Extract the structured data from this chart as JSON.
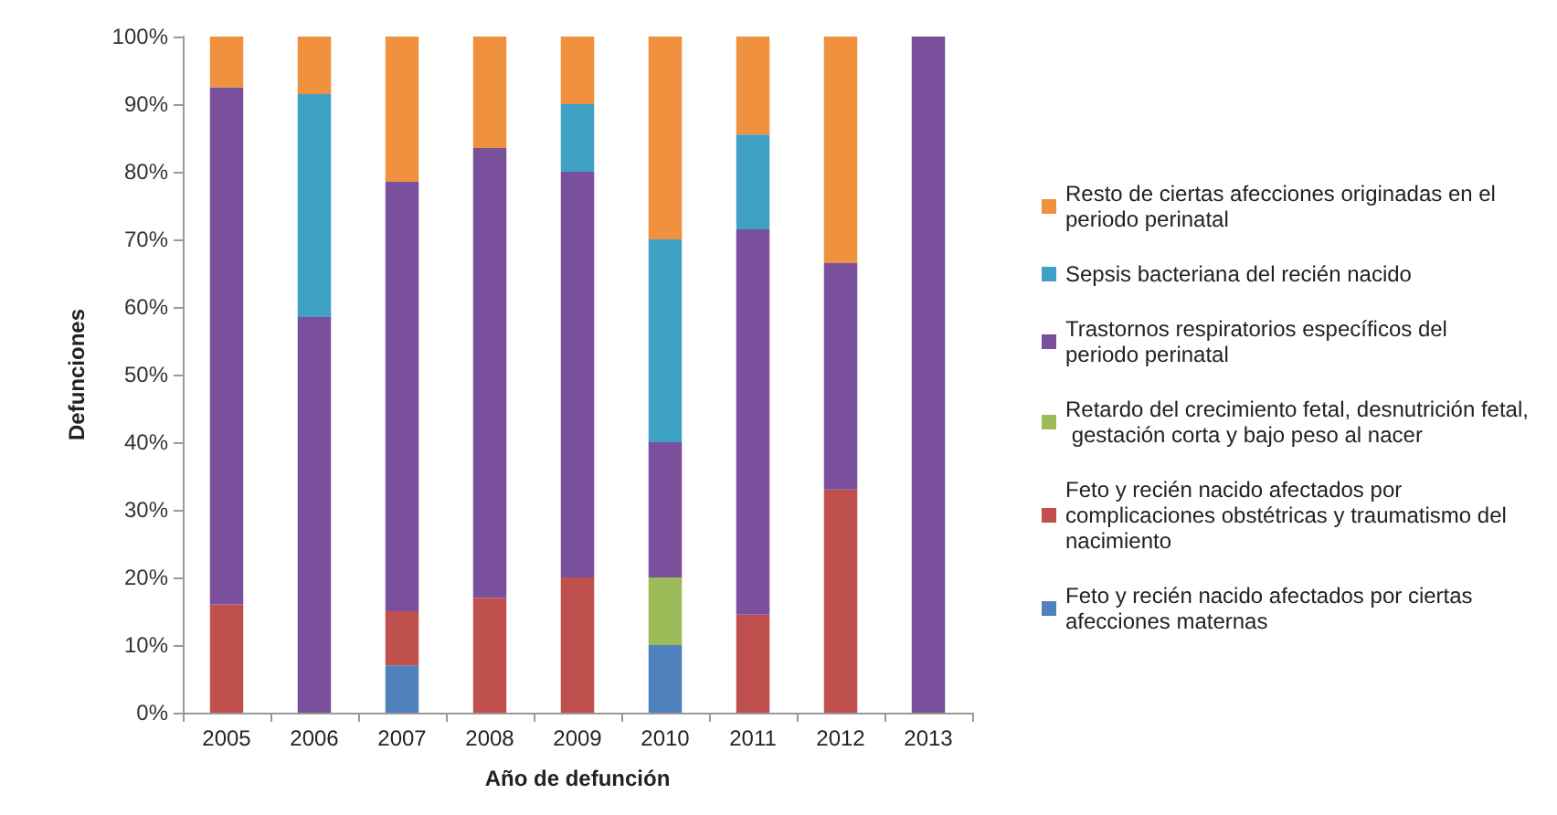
{
  "chart_data": {
    "type": "bar",
    "stacked": true,
    "xlabel": "Año de defunción",
    "ylabel": "Defunciones",
    "categories": [
      "2005",
      "2006",
      "2007",
      "2008",
      "2009",
      "2010",
      "2011",
      "2012",
      "2013"
    ],
    "series": [
      {
        "name": "Feto y recién nacido afectados por ciertas afecciones maternas",
        "color": "#4f81bd",
        "values": [
          0,
          0,
          7,
          0,
          0,
          10,
          0,
          0,
          0
        ]
      },
      {
        "name": "Feto y recién nacido afectados por complicaciones obstétricas y traumatismo del nacimiento",
        "color": "#c0504d",
        "values": [
          16,
          0,
          8,
          17,
          20,
          0,
          14.5,
          33,
          0
        ]
      },
      {
        "name": "Retardo del crecimiento fetal, desnutrición fetal, gestación corta y bajo peso al nacer",
        "color": "#9bbb59",
        "values": [
          0,
          0,
          0,
          0,
          0,
          10,
          0,
          0,
          0
        ]
      },
      {
        "name": "Trastornos respiratorios específicos del periodo perinatal",
        "color": "#7a509c",
        "values": [
          76.5,
          58.5,
          63.5,
          66.5,
          60,
          20,
          57,
          33.5,
          100
        ]
      },
      {
        "name": "Sepsis bacteriana del recién nacido",
        "color": "#3fa2c4",
        "values": [
          0,
          33,
          0,
          0,
          10,
          30,
          14,
          0,
          0
        ]
      },
      {
        "name": "Resto de ciertas afecciones originadas en el periodo perinatal",
        "color": "#f0913f",
        "values": [
          7.5,
          8.5,
          21.5,
          16.5,
          10,
          30,
          14.5,
          33.5,
          0
        ]
      }
    ],
    "ylim": [
      0,
      100
    ],
    "yticks": [
      {
        "value": 0,
        "label": "0%"
      },
      {
        "value": 10,
        "label": "10%"
      },
      {
        "value": 20,
        "label": "20%"
      },
      {
        "value": 30,
        "label": "30%"
      },
      {
        "value": 40,
        "label": "40%"
      },
      {
        "value": 50,
        "label": "50%"
      },
      {
        "value": 60,
        "label": "60%"
      },
      {
        "value": 70,
        "label": "70%"
      },
      {
        "value": 80,
        "label": "80%"
      },
      {
        "value": 90,
        "label": "90%"
      },
      {
        "value": 100,
        "label": "100%"
      }
    ],
    "grid": false,
    "legend": "right"
  }
}
